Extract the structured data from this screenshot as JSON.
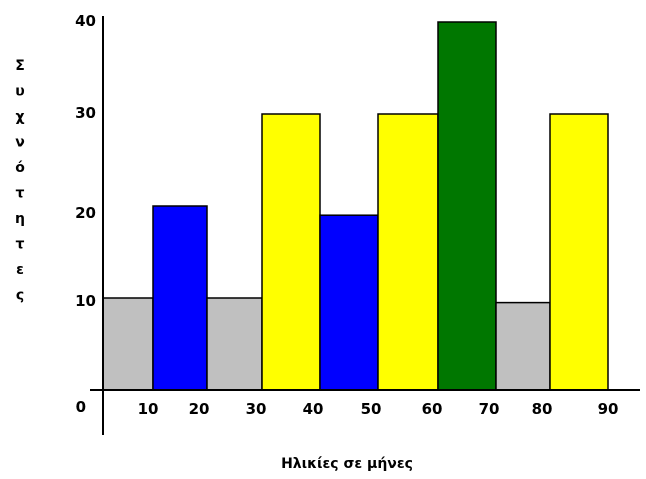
{
  "chart_data": {
    "type": "bar",
    "title": "",
    "xlabel": "Ηλικίες σε μήνες",
    "ylabel": "Συχνότητες",
    "x_ticks": [
      "10",
      "20",
      "30",
      "40",
      "50",
      "60",
      "70",
      "80",
      "90"
    ],
    "y_ticks": [
      "0",
      "10",
      "20",
      "30",
      "40"
    ],
    "ylim": [
      0,
      40
    ],
    "bars": [
      {
        "from": 0,
        "to": 10,
        "value": 10,
        "color": "#c0c0c0"
      },
      {
        "from": 10,
        "to": 20,
        "value": 20,
        "color": "#0000ff"
      },
      {
        "from": 20,
        "to": 30,
        "value": 10,
        "color": "#c0c0c0"
      },
      {
        "from": 30,
        "to": 40,
        "value": 30,
        "color": "#ffff00"
      },
      {
        "from": 40,
        "to": 50,
        "value": 19,
        "color": "#0000ff"
      },
      {
        "from": 50,
        "to": 60,
        "value": 30,
        "color": "#ffff00"
      },
      {
        "from": 60,
        "to": 70,
        "value": 40,
        "color": "#007700"
      },
      {
        "from": 70,
        "to": 80,
        "value": 9.5,
        "color": "#c0c0c0"
      },
      {
        "from": 80,
        "to": 90,
        "value": 30,
        "color": "#ffff00"
      }
    ]
  }
}
